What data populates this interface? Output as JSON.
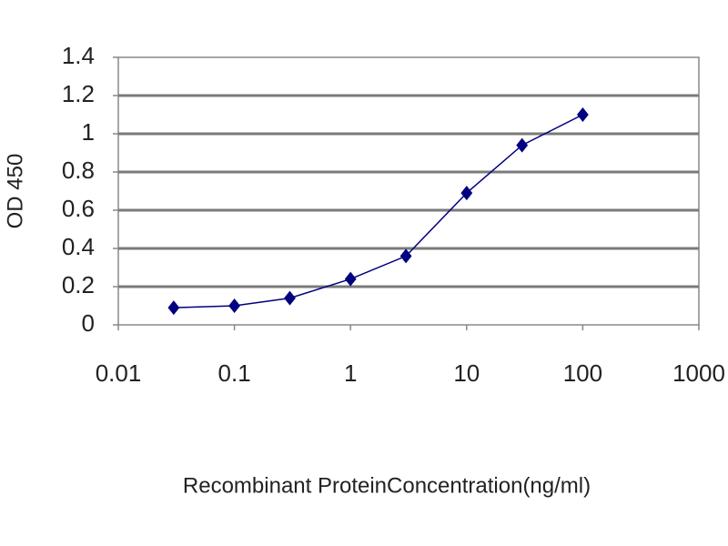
{
  "chart_data": {
    "type": "line",
    "x_label": "Recombinant ProteinConcentration(ng/ml)",
    "y_label": "OD 450",
    "x": [
      0.03,
      0.1,
      0.3,
      1,
      3,
      10,
      30,
      100
    ],
    "values": [
      0.09,
      0.1,
      0.14,
      0.24,
      0.36,
      0.69,
      0.94,
      1.1
    ],
    "color": "#000080",
    "xscale": "log",
    "xlim": [
      0.01,
      1000
    ],
    "xticks": [
      0.01,
      0.1,
      1,
      10,
      100,
      1000
    ],
    "ylim": [
      0,
      1.4
    ],
    "yticks": [
      0,
      0.2,
      0.4,
      0.6,
      0.8,
      1,
      1.2,
      1.4
    ],
    "grid": true
  }
}
